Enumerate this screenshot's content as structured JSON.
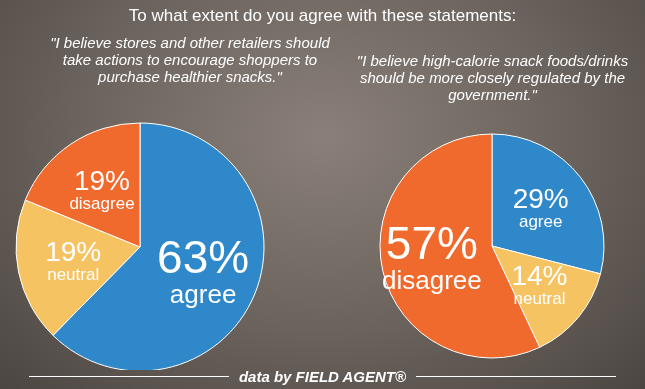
{
  "title": "To what extent do you agree with these statements:",
  "source": "data by FIELD AGENT®",
  "chart_data": [
    {
      "type": "pie",
      "title": "\"I believe stores and other retailers should take actions to encourage shoppers to purchase healthier snacks.\"",
      "categories": [
        "agree",
        "neutral",
        "disagree"
      ],
      "values": [
        63,
        19,
        19
      ],
      "value_labels": [
        "63%",
        "19%",
        "19%"
      ],
      "colors": [
        "#2f88c9",
        "#f5c361",
        "#ef6a2c"
      ],
      "data_labels": true
    },
    {
      "type": "pie",
      "title": "\"I believe high-calorie snack foods/drinks should be more closely regulated by the government.\"",
      "categories": [
        "agree",
        "neutral",
        "disagree"
      ],
      "values": [
        29,
        14,
        57
      ],
      "value_labels": [
        "29%",
        "14%",
        "57%"
      ],
      "colors": [
        "#2f88c9",
        "#f5c361",
        "#ef6a2c"
      ],
      "data_labels": true
    }
  ]
}
